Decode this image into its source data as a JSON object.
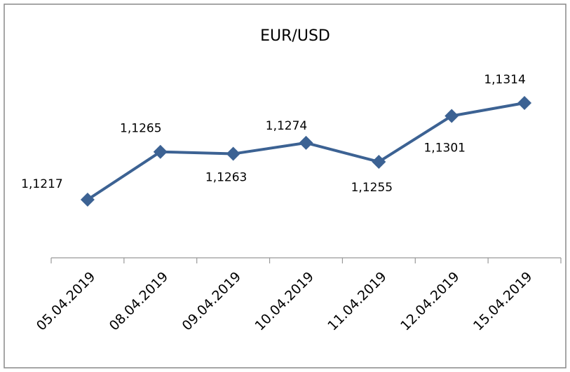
{
  "chart_data": {
    "type": "line",
    "title": "EUR/USD",
    "categories": [
      "05.04.2019",
      "08.04.2019",
      "09.04.2019",
      "10.04.2019",
      "11.04.2019",
      "12.04.2019",
      "15.04.2019"
    ],
    "values": [
      1.1217,
      1.1265,
      1.1263,
      1.1274,
      1.1255,
      1.1301,
      1.1314
    ],
    "value_labels": [
      "1,1217",
      "1,1265",
      "1,1263",
      "1,1274",
      "1,1255",
      "1,1301",
      "1,1314"
    ],
    "color": "#3c6293"
  }
}
